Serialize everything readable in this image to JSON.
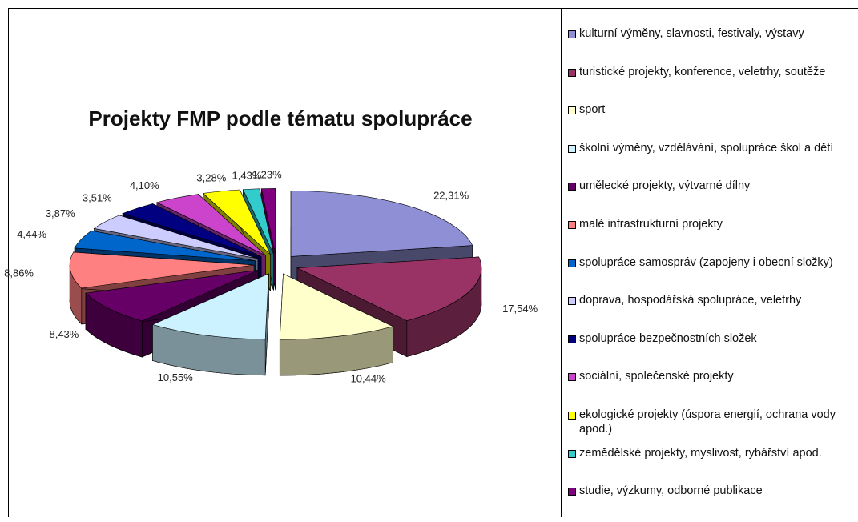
{
  "chart_data": {
    "type": "pie3d",
    "title": "Projekty FMP podle tématu spolupráce",
    "categories": [
      "kulturní výměny, slavnosti, festivaly, výstavy",
      "turistické projekty, konference, veletrhy, soutěže",
      "sport",
      "školní výměny, vzdělávání, spolupráce škol a dětí",
      "umělecké projekty, výtvarné dílny",
      "malé infrastrukturní projekty",
      "spolupráce samospráv (zapojeny i obecní složky)",
      "doprava, hospodářská spolupráce, veletrhy",
      "spolupráce bezpečnostních složek",
      "sociální, společenské projekty",
      "ekologické projekty (úspora energií, ochrana vody apod.)",
      "zemědělské projekty, myslivost, rybářství apod.",
      "studie, výzkumy, odborné publikace"
    ],
    "values": [
      22.31,
      17.54,
      10.44,
      10.55,
      8.43,
      8.86,
      4.44,
      3.87,
      3.51,
      4.1,
      3.28,
      1.43,
      1.23
    ],
    "value_labels": [
      "22,31%",
      "17,54%",
      "10,44%",
      "10,55%",
      "8,43%",
      "8,86%",
      "4,44%",
      "3,87%",
      "3,51%",
      "4,10%",
      "3,28%",
      "1,43%",
      "1,23%"
    ],
    "colors": [
      "#8f8fd6",
      "#993366",
      "#ffffcc",
      "#ccf2ff",
      "#660066",
      "#ff8080",
      "#0066cc",
      "#ccccff",
      "#000080",
      "#cc44cc",
      "#ffff00",
      "#33cccc",
      "#800080"
    ],
    "legend": "right"
  }
}
